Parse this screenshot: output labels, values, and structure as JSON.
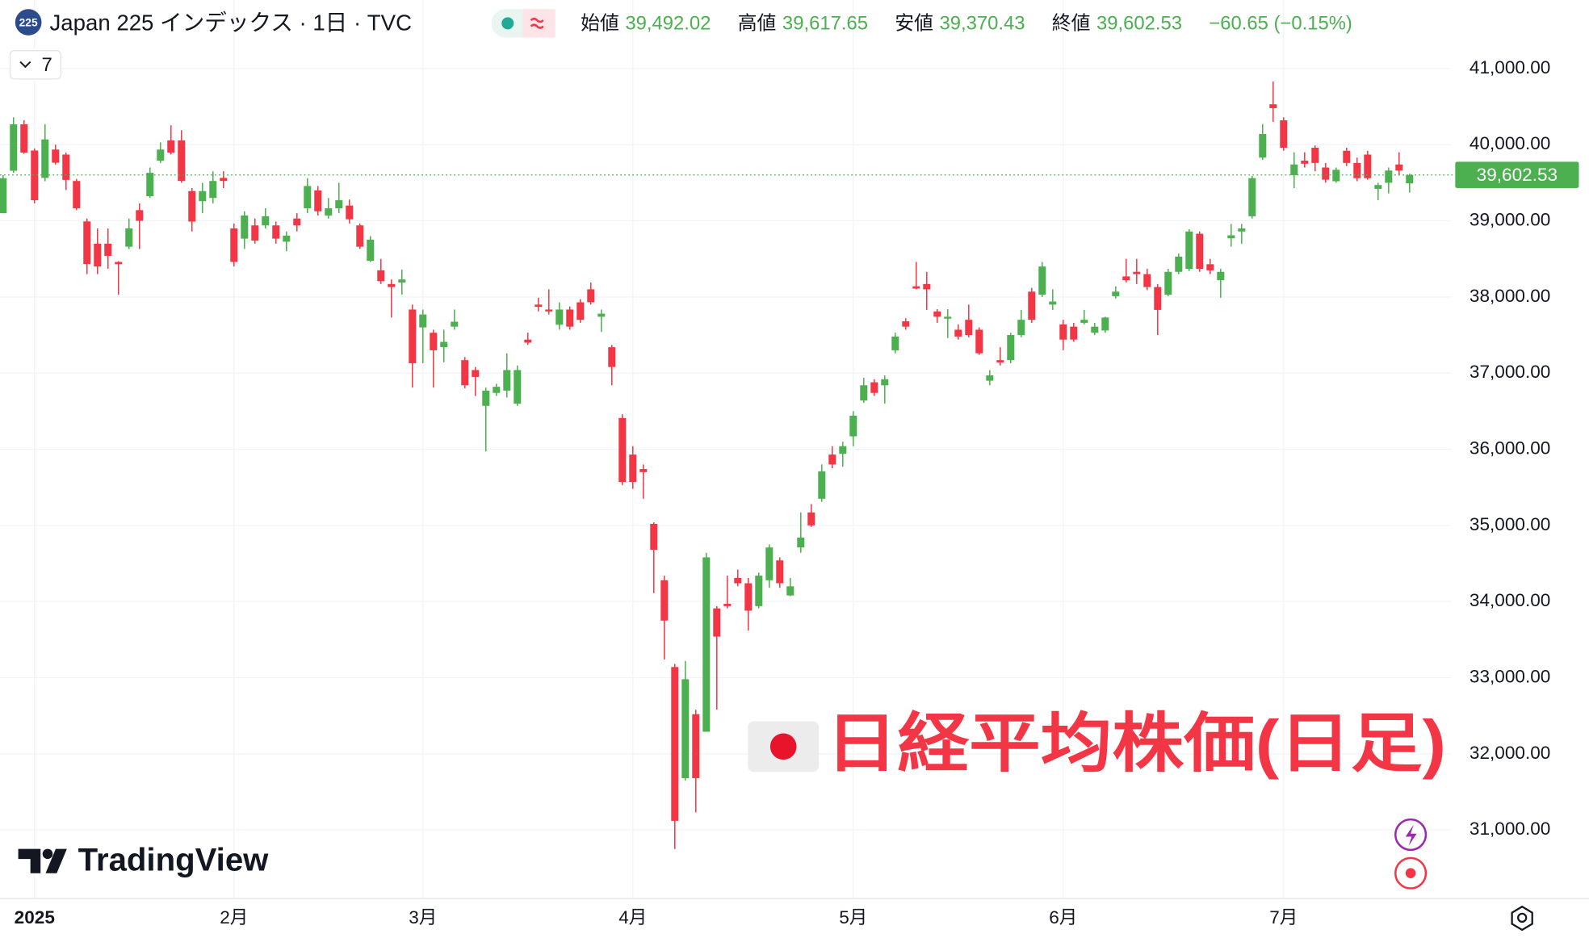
{
  "chart_data": {
    "type": "candlestick",
    "symbol_badge": "225",
    "title": "Japan 225 インデックス · 1日 · TVC",
    "ohlc_header": [
      {
        "name": "始値",
        "value": "39,492.02"
      },
      {
        "name": "高値",
        "value": "39,617.65"
      },
      {
        "name": "安値",
        "value": "39,370.43"
      },
      {
        "name": "終値",
        "value": "39,602.53"
      }
    ],
    "change": "−60.65 (−0.15%)",
    "indicator_count": "7",
    "annotation": "日経平均株価(日足)",
    "watermark": "TradingView",
    "last_price_label": "39,602.53",
    "up_color": "#4caf50",
    "down_color": "#f23645",
    "grid": true,
    "ylim": [
      30100,
      41900
    ],
    "yticks": [
      {
        "value": 31000,
        "label": "31,000.00"
      },
      {
        "value": 32000,
        "label": "32,000.00"
      },
      {
        "value": 33000,
        "label": "33,000.00"
      },
      {
        "value": 34000,
        "label": "34,000.00"
      },
      {
        "value": 35000,
        "label": "35,000.00"
      },
      {
        "value": 36000,
        "label": "36,000.00"
      },
      {
        "value": 37000,
        "label": "37,000.00"
      },
      {
        "value": 38000,
        "label": "38,000.00"
      },
      {
        "value": 39000,
        "label": "39,000.00"
      },
      {
        "value": 40000,
        "label": "40,000.00"
      },
      {
        "value": 41000,
        "label": "41,000.00"
      }
    ],
    "categories": [
      null,
      null,
      null,
      "2025",
      null,
      null,
      null,
      null,
      null,
      null,
      null,
      null,
      null,
      null,
      null,
      null,
      null,
      null,
      null,
      null,
      null,
      null,
      "2月",
      null,
      null,
      null,
      null,
      null,
      null,
      null,
      null,
      null,
      null,
      null,
      null,
      null,
      null,
      null,
      null,
      null,
      "3月",
      null,
      null,
      null,
      null,
      null,
      null,
      null,
      null,
      null,
      null,
      null,
      null,
      null,
      null,
      null,
      null,
      null,
      null,
      null,
      "4月",
      null,
      null,
      null,
      null,
      null,
      null,
      null,
      null,
      null,
      null,
      null,
      null,
      null,
      null,
      null,
      null,
      null,
      null,
      null,
      null,
      "5月",
      null,
      null,
      null,
      null,
      null,
      null,
      null,
      null,
      null,
      null,
      null,
      null,
      null,
      null,
      null,
      null,
      null,
      null,
      null,
      "6月",
      null,
      null,
      null,
      null,
      null,
      null,
      null,
      null,
      null,
      null,
      null,
      null,
      null,
      null,
      null,
      null,
      null,
      null,
      null,
      null,
      "7月",
      null,
      null,
      null,
      null,
      null,
      null,
      null,
      null,
      null,
      null,
      null,
      null
    ],
    "open": [
      39100,
      39657,
      40268,
      39923,
      39564,
      39936,
      39870,
      39523,
      38992,
      38700,
      38700,
      38460,
      38660,
      39140,
      39324,
      39790,
      40056,
      40056,
      39390,
      39258,
      39300,
      39564,
      38900,
      38766,
      38940,
      38940,
      38940,
      38726,
      39030,
      39165,
      39400,
      39070,
      39165,
      39200,
      38940,
      38474,
      38350,
      38170,
      38190,
      37835,
      37600,
      37530,
      37340,
      37610,
      37170,
      37040,
      36570,
      36740,
      36770,
      36600,
      37440,
      37900,
      37835,
      37635,
      37835,
      37930,
      38100,
      37740,
      37340,
      36410,
      35930,
      35740,
      35020,
      34280,
      33140,
      31680,
      32520,
      32290,
      33910,
      33970,
      34310,
      34240,
      33940,
      34280,
      34540,
      34080,
      34710,
      35170,
      35350,
      35930,
      35940,
      36170,
      36640,
      36880,
      36840,
      37300,
      37680,
      38140,
      38170,
      37810,
      37715,
      37570,
      37700,
      37570,
      36900,
      37170,
      37170,
      37500,
      38070,
      38030,
      37900,
      37640,
      37610,
      37660,
      37530,
      37560,
      38010,
      38270,
      38330,
      38300,
      38130,
      38030,
      38330,
      38370,
      38830,
      38430,
      38220,
      38770,
      38860,
      39060,
      39830,
      40530,
      40320,
      39600,
      39790,
      39960,
      39700,
      39520,
      39920,
      39760,
      39870,
      39420,
      39500,
      39740,
      39492.02
    ],
    "high": [
      39600,
      40360,
      40320,
      39950,
      40270,
      40000,
      39896,
      39550,
      39030,
      38900,
      38900,
      38470,
      39030,
      39230,
      39700,
      40030,
      40255,
      40190,
      39430,
      39500,
      39650,
      39650,
      38965,
      39125,
      39030,
      39165,
      38990,
      38860,
      39100,
      39560,
      39457,
      39300,
      39500,
      39280,
      38965,
      38800,
      38500,
      38230,
      38360,
      37900,
      37835,
      37570,
      37570,
      37835,
      37210,
      37080,
      36810,
      36860,
      37260,
      37100,
      37530,
      37990,
      38100,
      37930,
      37875,
      37970,
      38190,
      37835,
      37370,
      36460,
      36040,
      35800,
      35040,
      34340,
      33180,
      33220,
      32580,
      34640,
      33940,
      34340,
      34420,
      34310,
      34380,
      34750,
      34580,
      34310,
      35170,
      35280,
      35800,
      36040,
      36100,
      36500,
      36940,
      36920,
      36970,
      37530,
      37720,
      38460,
      38330,
      37840,
      37840,
      37640,
      37900,
      37600,
      37040,
      37340,
      37530,
      37830,
      38120,
      38460,
      38100,
      37700,
      37660,
      37830,
      37660,
      37740,
      38140,
      38500,
      38500,
      38370,
      38170,
      38370,
      38570,
      38890,
      38860,
      38500,
      38370,
      38960,
      38960,
      39590,
      40270,
      40830,
      40360,
      39900,
      39900,
      39990,
      39760,
      39700,
      39960,
      39830,
      39920,
      39500,
      39700,
      39900,
      39617.65
    ],
    "low": [
      39100,
      39630,
      39880,
      39230,
      39520,
      39740,
      39404,
      39140,
      38300,
      38300,
      38370,
      38030,
      38630,
      38630,
      39300,
      39760,
      39870,
      39500,
      38860,
      39100,
      39230,
      39430,
      38400,
      38630,
      38700,
      38900,
      38700,
      38600,
      38860,
      39100,
      39070,
      39030,
      39100,
      38965,
      38630,
      38460,
      38170,
      37730,
      38030,
      36810,
      37130,
      36810,
      37140,
      37570,
      36800,
      36700,
      35970,
      36700,
      36680,
      36570,
      37370,
      37810,
      37770,
      37570,
      37570,
      37660,
      37900,
      37540,
      36840,
      35530,
      35480,
      35350,
      34110,
      33240,
      30750,
      31650,
      31230,
      32290,
      32580,
      33910,
      34200,
      33620,
      33910,
      34180,
      34180,
      34070,
      34640,
      34980,
      35310,
      35750,
      35770,
      36040,
      36610,
      36700,
      36600,
      37260,
      37570,
      38100,
      37830,
      37660,
      37460,
      37440,
      37470,
      37240,
      36840,
      37100,
      37130,
      37470,
      37660,
      38000,
      37830,
      37300,
      37410,
      37640,
      37500,
      37530,
      37980,
      38190,
      38170,
      38090,
      37500,
      38010,
      38300,
      38340,
      38330,
      38300,
      37990,
      38660,
      38700,
      39030,
      39800,
      40300,
      39920,
      39430,
      39700,
      39650,
      39500,
      39500,
      39720,
      39520,
      39540,
      39270,
      39360,
      39600,
      39370.43
    ],
    "close": [
      39560,
      40268,
      39896,
      39271,
      40069,
      39763,
      39537,
      39165,
      38433,
      38400,
      38540,
      38430,
      38900,
      39000,
      39630,
      39936,
      39896,
      39523,
      38990,
      39390,
      39523,
      39523,
      38460,
      39070,
      38740,
      39060,
      38766,
      38806,
      38940,
      39457,
      39125,
      39165,
      39270,
      39020,
      38660,
      38753,
      38207,
      38130,
      38230,
      37130,
      37770,
      37300,
      37410,
      37675,
      36840,
      36950,
      36770,
      36820,
      37040,
      37040,
      37400,
      37870,
      37810,
      37835,
      37610,
      37700,
      37930,
      37780,
      37080,
      35570,
      35570,
      35700,
      34680,
      33750,
      31120,
      32980,
      31680,
      34580,
      33540,
      33940,
      34240,
      33880,
      34340,
      34710,
      34240,
      34200,
      34840,
      35000,
      35710,
      35800,
      36040,
      36440,
      36840,
      36740,
      36920,
      37480,
      37610,
      38110,
      38100,
      37740,
      37740,
      37480,
      37500,
      37260,
      36970,
      37140,
      37500,
      37700,
      37700,
      38400,
      37940,
      37440,
      37440,
      37700,
      37610,
      37730,
      38070,
      38220,
      38300,
      38130,
      37830,
      38330,
      38530,
      38860,
      38370,
      38350,
      38330,
      38810,
      38900,
      39560,
      40140,
      40480,
      39960,
      39740,
      39750,
      39760,
      39540,
      39670,
      39760,
      39560,
      39560,
      39470,
      39660,
      39660,
      39602.53
    ]
  }
}
